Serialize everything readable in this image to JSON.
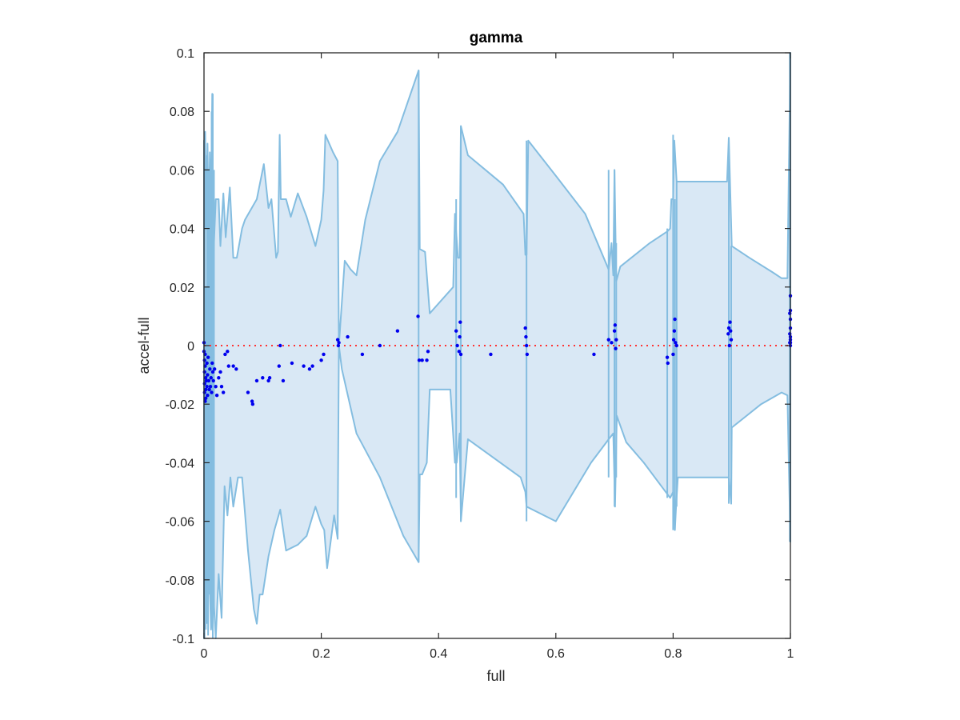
{
  "chart_data": {
    "type": "area",
    "title": "gamma",
    "xlabel": "full",
    "ylabel": "accel-full",
    "xlim": [
      0,
      1
    ],
    "ylim": [
      -0.1,
      0.1
    ],
    "x_ticks": [
      0,
      0.2,
      0.4,
      0.6,
      0.8,
      1
    ],
    "x_tick_labels": [
      "0",
      "0.2",
      "0.4",
      "0.6",
      "0.8",
      "1"
    ],
    "y_ticks": [
      -0.1,
      -0.08,
      -0.06,
      -0.04,
      -0.02,
      0,
      0.02,
      0.04,
      0.06,
      0.08,
      0.1
    ],
    "y_tick_labels": [
      "-0.1",
      "-0.08",
      "-0.06",
      "-0.04",
      "-0.02",
      "0",
      "0.02",
      "0.04",
      "0.06",
      "0.08",
      "0.1"
    ],
    "grid": false,
    "box": true,
    "colors": {
      "band_fill": "#d9e8f5",
      "band_edge": "#84bde0",
      "points": "#0000ee",
      "zero_line": "#ff3333",
      "axis": "#262626"
    },
    "band": {
      "upper": [
        [
          0,
          0.07
        ],
        [
          0.001,
          0.02
        ],
        [
          0.002,
          0.073
        ],
        [
          0.004,
          0.04
        ],
        [
          0.006,
          0.069
        ],
        [
          0.008,
          0.04
        ],
        [
          0.01,
          0.066
        ],
        [
          0.012,
          0.045
        ],
        [
          0.014,
          0.086
        ],
        [
          0.016,
          0.03
        ],
        [
          0.02,
          0.05
        ],
        [
          0.025,
          0.05
        ],
        [
          0.028,
          0.034
        ],
        [
          0.033,
          0.052
        ],
        [
          0.037,
          0.037
        ],
        [
          0.044,
          0.054
        ],
        [
          0.05,
          0.03
        ],
        [
          0.056,
          0.03
        ],
        [
          0.065,
          0.04
        ],
        [
          0.07,
          0.043
        ],
        [
          0.09,
          0.05
        ],
        [
          0.094,
          0.054
        ],
        [
          0.102,
          0.062
        ],
        [
          0.11,
          0.047
        ],
        [
          0.115,
          0.05
        ],
        [
          0.123,
          0.03
        ],
        [
          0.126,
          0.032
        ],
        [
          0.129,
          0.072
        ],
        [
          0.131,
          0.05
        ],
        [
          0.14,
          0.05
        ],
        [
          0.148,
          0.044
        ],
        [
          0.16,
          0.052
        ],
        [
          0.175,
          0.044
        ],
        [
          0.19,
          0.034
        ],
        [
          0.2,
          0.043
        ],
        [
          0.204,
          0.053
        ],
        [
          0.207,
          0.072
        ],
        [
          0.22,
          0.066
        ],
        [
          0.228,
          0.063
        ],
        [
          0.23,
          0.0
        ],
        [
          0.24,
          0.029
        ],
        [
          0.25,
          0.026
        ],
        [
          0.26,
          0.024
        ],
        [
          0.275,
          0.043
        ],
        [
          0.3,
          0.063
        ],
        [
          0.33,
          0.073
        ],
        [
          0.366,
          0.094
        ],
        [
          0.368,
          0.033
        ],
        [
          0.377,
          0.032
        ],
        [
          0.385,
          0.011
        ],
        [
          0.425,
          0.02
        ],
        [
          0.428,
          0.045
        ],
        [
          0.433,
          0.03
        ],
        [
          0.436,
          0.03
        ],
        [
          0.438,
          0.075
        ],
        [
          0.45,
          0.065
        ],
        [
          0.51,
          0.055
        ],
        [
          0.545,
          0.045
        ],
        [
          0.548,
          0.031
        ],
        [
          0.55,
          0.031
        ],
        [
          0.553,
          0.07
        ],
        [
          0.6,
          0.058
        ],
        [
          0.65,
          0.045
        ],
        [
          0.69,
          0.026
        ],
        [
          0.695,
          0.035
        ],
        [
          0.698,
          0.024
        ],
        [
          0.7,
          0.06
        ],
        [
          0.703,
          0.022
        ],
        [
          0.71,
          0.027
        ],
        [
          0.76,
          0.035
        ],
        [
          0.79,
          0.039
        ],
        [
          0.795,
          0.04
        ],
        [
          0.797,
          0.05
        ],
        [
          0.8,
          0.05
        ],
        [
          0.802,
          0.07
        ],
        [
          0.806,
          0.056
        ],
        [
          0.84,
          0.056
        ],
        [
          0.89,
          0.056
        ],
        [
          0.892,
          0.056
        ],
        [
          0.895,
          0.071
        ],
        [
          0.9,
          0.034
        ],
        [
          0.93,
          0.03
        ],
        [
          0.97,
          0.025
        ],
        [
          0.985,
          0.023
        ],
        [
          0.995,
          0.023
        ],
        [
          1.0,
          0.1
        ]
      ],
      "lower": [
        [
          1.0,
          -0.067
        ],
        [
          0.995,
          -0.017
        ],
        [
          0.985,
          -0.016
        ],
        [
          0.95,
          -0.02
        ],
        [
          0.9,
          -0.028
        ],
        [
          0.899,
          -0.054
        ],
        [
          0.895,
          -0.045
        ],
        [
          0.84,
          -0.045
        ],
        [
          0.808,
          -0.045
        ],
        [
          0.805,
          -0.055
        ],
        [
          0.803,
          -0.063
        ],
        [
          0.8,
          -0.05
        ],
        [
          0.795,
          -0.052
        ],
        [
          0.78,
          -0.048
        ],
        [
          0.75,
          -0.04
        ],
        [
          0.72,
          -0.033
        ],
        [
          0.704,
          -0.024
        ],
        [
          0.701,
          -0.055
        ],
        [
          0.698,
          -0.03
        ],
        [
          0.69,
          -0.032
        ],
        [
          0.66,
          -0.04
        ],
        [
          0.6,
          -0.06
        ],
        [
          0.55,
          -0.055
        ],
        [
          0.548,
          -0.05
        ],
        [
          0.54,
          -0.045
        ],
        [
          0.45,
          -0.032
        ],
        [
          0.438,
          -0.06
        ],
        [
          0.436,
          -0.03
        ],
        [
          0.431,
          -0.04
        ],
        [
          0.428,
          -0.04
        ],
        [
          0.42,
          -0.015
        ],
        [
          0.385,
          -0.015
        ],
        [
          0.38,
          -0.04
        ],
        [
          0.372,
          -0.044
        ],
        [
          0.368,
          -0.044
        ],
        [
          0.366,
          -0.074
        ],
        [
          0.34,
          -0.065
        ],
        [
          0.3,
          -0.045
        ],
        [
          0.26,
          -0.03
        ],
        [
          0.235,
          -0.008
        ],
        [
          0.23,
          0.0
        ],
        [
          0.228,
          -0.066
        ],
        [
          0.222,
          -0.058
        ],
        [
          0.21,
          -0.076
        ],
        [
          0.205,
          -0.063
        ],
        [
          0.2,
          -0.061
        ],
        [
          0.19,
          -0.055
        ],
        [
          0.175,
          -0.065
        ],
        [
          0.16,
          -0.068
        ],
        [
          0.14,
          -0.07
        ],
        [
          0.13,
          -0.056
        ],
        [
          0.12,
          -0.063
        ],
        [
          0.11,
          -0.072
        ],
        [
          0.1,
          -0.085
        ],
        [
          0.095,
          -0.085
        ],
        [
          0.09,
          -0.095
        ],
        [
          0.085,
          -0.09
        ],
        [
          0.075,
          -0.07
        ],
        [
          0.065,
          -0.045
        ],
        [
          0.058,
          -0.045
        ],
        [
          0.05,
          -0.055
        ],
        [
          0.045,
          -0.045
        ],
        [
          0.04,
          -0.058
        ],
        [
          0.035,
          -0.048
        ],
        [
          0.03,
          -0.093
        ],
        [
          0.025,
          -0.078
        ],
        [
          0.02,
          -0.1
        ],
        [
          0.016,
          -0.085
        ],
        [
          0.012,
          -0.097
        ],
        [
          0.008,
          -0.07
        ],
        [
          0.005,
          -0.085
        ],
        [
          0.002,
          -0.06
        ],
        [
          0.001,
          -0.07
        ],
        [
          0,
          -0.1
        ]
      ],
      "spikes": [
        [
          0.001,
          0.07,
          -0.1
        ],
        [
          0.003,
          0.02,
          -0.097
        ],
        [
          0.005,
          0.065,
          -0.095
        ],
        [
          0.007,
          0.06,
          -0.099
        ],
        [
          0.009,
          0.055,
          -0.085
        ],
        [
          0.011,
          0.05,
          -0.09
        ],
        [
          0.013,
          0.08,
          -0.095
        ],
        [
          0.015,
          0.086,
          -0.1
        ],
        [
          0.017,
          0.06,
          -0.09
        ],
        [
          0.366,
          0.094,
          -0.074
        ],
        [
          0.43,
          0.05,
          -0.052
        ],
        [
          0.438,
          0.075,
          -0.06
        ],
        [
          0.55,
          0.07,
          -0.06
        ],
        [
          0.69,
          0.06,
          -0.045
        ],
        [
          0.7,
          0.06,
          -0.055
        ],
        [
          0.703,
          0.035,
          -0.045
        ],
        [
          0.79,
          0.04,
          -0.052
        ],
        [
          0.8,
          0.072,
          -0.063
        ],
        [
          0.803,
          0.05,
          -0.063
        ],
        [
          0.806,
          0.056,
          -0.055
        ],
        [
          0.895,
          0.071,
          -0.054
        ],
        [
          0.899,
          0.034,
          -0.054
        ],
        [
          0.999,
          0.1,
          -0.067
        ],
        [
          1.0,
          0.1,
          -0.067
        ]
      ]
    },
    "zero_line": {
      "y": 0,
      "style": "dotted"
    },
    "points": [
      [
        0.0,
        0.001
      ],
      [
        0.0,
        -0.002
      ],
      [
        0.001,
        -0.005
      ],
      [
        0.001,
        -0.009
      ],
      [
        0.001,
        -0.013
      ],
      [
        0.001,
        -0.016
      ],
      [
        0.002,
        -0.019
      ],
      [
        0.002,
        -0.003
      ],
      [
        0.002,
        -0.007
      ],
      [
        0.003,
        -0.011
      ],
      [
        0.003,
        -0.015
      ],
      [
        0.003,
        -0.018
      ],
      [
        0.004,
        -0.012
      ],
      [
        0.005,
        -0.006
      ],
      [
        0.005,
        -0.014
      ],
      [
        0.006,
        -0.01
      ],
      [
        0.006,
        -0.017
      ],
      [
        0.007,
        -0.004
      ],
      [
        0.008,
        -0.012
      ],
      [
        0.009,
        -0.015
      ],
      [
        0.01,
        -0.008
      ],
      [
        0.011,
        -0.014
      ],
      [
        0.012,
        -0.011
      ],
      [
        0.013,
        -0.016
      ],
      [
        0.014,
        -0.006
      ],
      [
        0.015,
        -0.009
      ],
      [
        0.016,
        -0.012
      ],
      [
        0.018,
        -0.008
      ],
      [
        0.02,
        -0.014
      ],
      [
        0.022,
        -0.017
      ],
      [
        0.025,
        -0.011
      ],
      [
        0.028,
        -0.009
      ],
      [
        0.03,
        -0.014
      ],
      [
        0.033,
        -0.016
      ],
      [
        0.036,
        -0.003
      ],
      [
        0.04,
        -0.002
      ],
      [
        0.042,
        -0.007
      ],
      [
        0.05,
        -0.007
      ],
      [
        0.055,
        -0.008
      ],
      [
        0.075,
        -0.016
      ],
      [
        0.082,
        -0.019
      ],
      [
        0.083,
        -0.02
      ],
      [
        0.09,
        -0.012
      ],
      [
        0.1,
        -0.011
      ],
      [
        0.11,
        -0.012
      ],
      [
        0.112,
        -0.011
      ],
      [
        0.13,
        0.0
      ],
      [
        0.128,
        -0.007
      ],
      [
        0.135,
        -0.012
      ],
      [
        0.15,
        -0.006
      ],
      [
        0.17,
        -0.007
      ],
      [
        0.18,
        -0.008
      ],
      [
        0.185,
        -0.007
      ],
      [
        0.2,
        -0.005
      ],
      [
        0.204,
        -0.003
      ],
      [
        0.228,
        0.002
      ],
      [
        0.229,
        0.0
      ],
      [
        0.23,
        0.001
      ],
      [
        0.245,
        0.003
      ],
      [
        0.27,
        -0.003
      ],
      [
        0.3,
        0.0
      ],
      [
        0.33,
        0.005
      ],
      [
        0.365,
        0.01
      ],
      [
        0.367,
        -0.005
      ],
      [
        0.372,
        -0.005
      ],
      [
        0.38,
        -0.005
      ],
      [
        0.382,
        -0.002
      ],
      [
        0.43,
        0.005
      ],
      [
        0.432,
        0.0
      ],
      [
        0.435,
        -0.002
      ],
      [
        0.436,
        0.003
      ],
      [
        0.437,
        0.008
      ],
      [
        0.438,
        -0.003
      ],
      [
        0.489,
        -0.003
      ],
      [
        0.548,
        0.006
      ],
      [
        0.549,
        0.003
      ],
      [
        0.55,
        0.0
      ],
      [
        0.551,
        -0.003
      ],
      [
        0.665,
        -0.003
      ],
      [
        0.69,
        0.002
      ],
      [
        0.695,
        0.001
      ],
      [
        0.7,
        0.005
      ],
      [
        0.701,
        0.007
      ],
      [
        0.702,
        -0.001
      ],
      [
        0.703,
        0.002
      ],
      [
        0.79,
        -0.004
      ],
      [
        0.791,
        -0.006
      ],
      [
        0.8,
        -0.003
      ],
      [
        0.801,
        0.002
      ],
      [
        0.802,
        0.005
      ],
      [
        0.803,
        0.009
      ],
      [
        0.804,
        0.001
      ],
      [
        0.806,
        0.0
      ],
      [
        0.894,
        0.004
      ],
      [
        0.895,
        0.006
      ],
      [
        0.896,
        0.0
      ],
      [
        0.897,
        0.008
      ],
      [
        0.898,
        0.005
      ],
      [
        0.899,
        0.002
      ],
      [
        1.0,
        0.017
      ],
      [
        1.0,
        0.012
      ],
      [
        1.0,
        0.009
      ],
      [
        1.0,
        0.006
      ],
      [
        1.0,
        0.003
      ],
      [
        1.0,
        0.0
      ],
      [
        1.0,
        0.001
      ],
      [
        1.0,
        0.002
      ],
      [
        0.999,
        0.011
      ],
      [
        0.999,
        0.004
      ],
      [
        0.999,
        0.001
      ]
    ]
  }
}
